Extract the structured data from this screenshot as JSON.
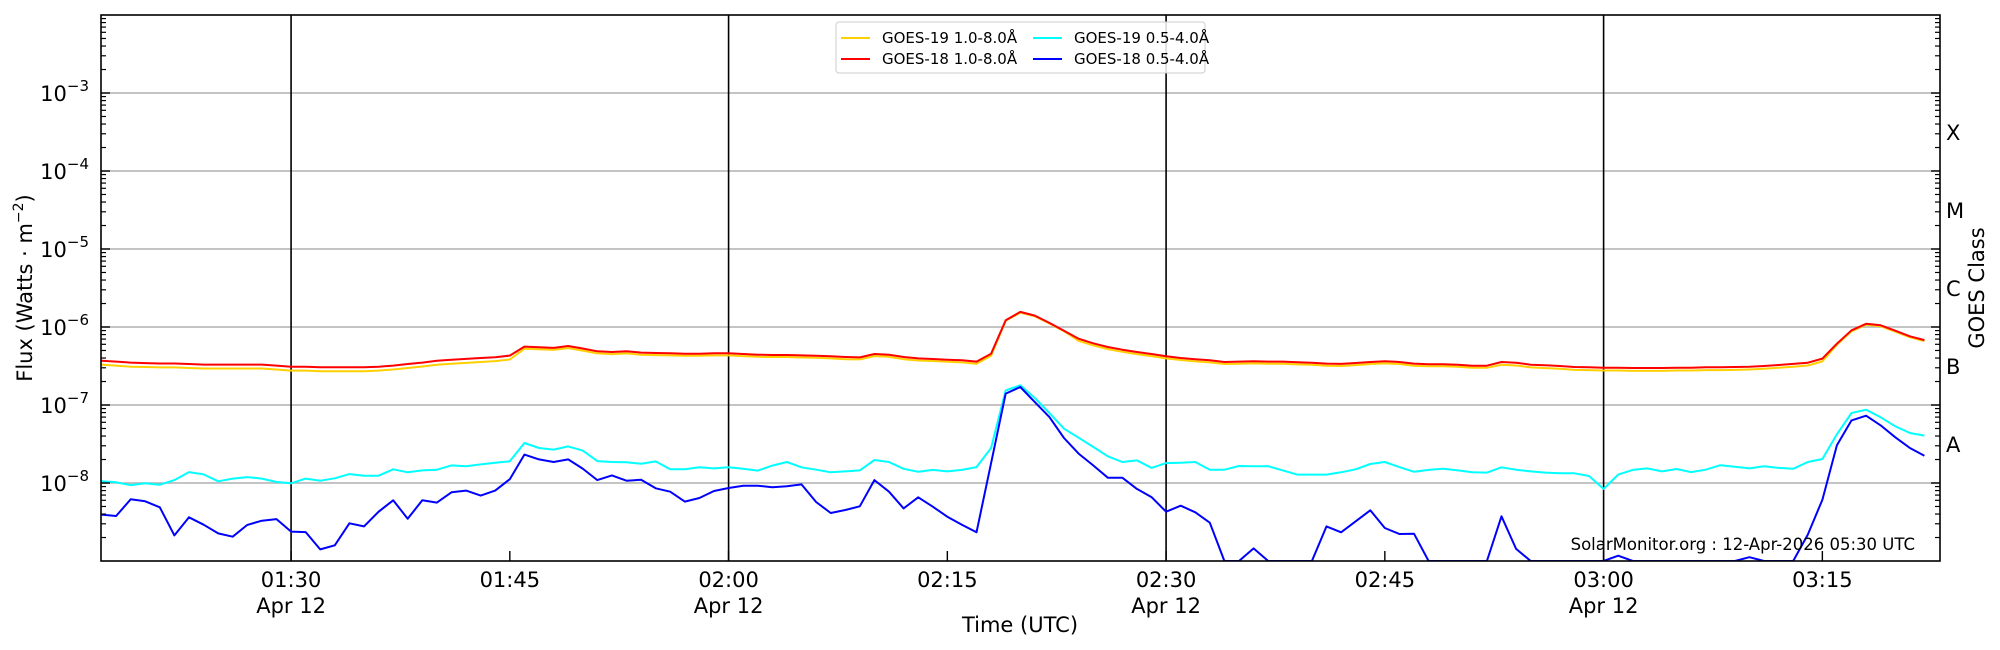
{
  "chart_data": {
    "type": "line",
    "title": "",
    "xlabel": "Time (UTC)",
    "ylabel": {
      "prefix": "Flux (Watts · m",
      "sup": "−2",
      "suffix": ")"
    },
    "y2label": "GOES Class",
    "yscale": "log",
    "ylim": [
      1e-09,
      0.01
    ],
    "xlim": [
      "01:16:58",
      "03:23:04"
    ],
    "x_start": "01:17",
    "x_step_minutes": 1,
    "grid": "horizontal major (decades) + vertical lines at day-labelled ticks",
    "y_ticks": [
      {
        "value": 0.001,
        "base": "10",
        "exp": "−3"
      },
      {
        "value": 0.0001,
        "base": "10",
        "exp": "−4"
      },
      {
        "value": 1e-05,
        "base": "10",
        "exp": "−5"
      },
      {
        "value": 1e-06,
        "base": "10",
        "exp": "−6"
      },
      {
        "value": 1e-07,
        "base": "10",
        "exp": "−7"
      },
      {
        "value": 1e-08,
        "base": "10",
        "exp": "−8"
      }
    ],
    "x_ticks": [
      {
        "time": "01:30",
        "label": "01:30",
        "sub": "Apr 12",
        "vline": true
      },
      {
        "time": "01:45",
        "label": "01:45",
        "sub": "",
        "vline": false
      },
      {
        "time": "02:00",
        "label": "02:00",
        "sub": "Apr 12",
        "vline": true
      },
      {
        "time": "02:15",
        "label": "02:15",
        "sub": "",
        "vline": false
      },
      {
        "time": "02:30",
        "label": "02:30",
        "sub": "Apr 12",
        "vline": true
      },
      {
        "time": "02:45",
        "label": "02:45",
        "sub": "",
        "vline": false
      },
      {
        "time": "03:00",
        "label": "03:00",
        "sub": "Apr 12",
        "vline": true
      },
      {
        "time": "03:15",
        "label": "03:15",
        "sub": "",
        "vline": false
      }
    ],
    "goes_classes": [
      {
        "label": "X",
        "log_center": -3.5
      },
      {
        "label": "M",
        "log_center": -4.5
      },
      {
        "label": "C",
        "log_center": -5.5
      },
      {
        "label": "B",
        "log_center": -6.5
      },
      {
        "label": "A",
        "log_center": -7.5
      }
    ],
    "legend_position": "top-center",
    "annotation": "SolarMonitor.org : 12-Apr-2026 05:30 UTC",
    "series": [
      {
        "name": "GOES-19 1.0-8.0Å",
        "color": "#ffd000",
        "scale": 1e-07,
        "values": [
          3.3,
          3.2,
          3.1,
          3.07,
          3.03,
          3.03,
          2.98,
          2.94,
          2.94,
          2.94,
          2.94,
          2.94,
          2.85,
          2.76,
          2.76,
          2.71,
          2.71,
          2.71,
          2.71,
          2.76,
          2.85,
          2.98,
          3.12,
          3.29,
          3.38,
          3.47,
          3.56,
          3.65,
          3.83,
          5.26,
          5.17,
          5.08,
          5.36,
          4.98,
          4.59,
          4.49,
          4.59,
          4.41,
          4.36,
          4.32,
          4.28,
          4.28,
          4.32,
          4.32,
          4.24,
          4.15,
          4.12,
          4.12,
          4.07,
          4.03,
          3.96,
          3.87,
          3.84,
          4.24,
          4.15,
          3.87,
          3.72,
          3.66,
          3.58,
          3.52,
          3.38,
          4.28,
          12.0,
          15.3,
          13.7,
          11.1,
          8.8,
          6.66,
          5.81,
          5.21,
          4.81,
          4.49,
          4.24,
          3.96,
          3.77,
          3.62,
          3.52,
          3.35,
          3.38,
          3.41,
          3.38,
          3.38,
          3.32,
          3.28,
          3.19,
          3.16,
          3.25,
          3.35,
          3.41,
          3.35,
          3.19,
          3.13,
          3.13,
          3.09,
          3.0,
          3.0,
          3.28,
          3.21,
          3.03,
          2.97,
          2.91,
          2.82,
          2.8,
          2.77,
          2.77,
          2.74,
          2.74,
          2.74,
          2.77,
          2.77,
          2.8,
          2.8,
          2.82,
          2.85,
          2.91,
          3.0,
          3.09,
          3.21,
          3.62,
          5.93,
          8.79,
          10.7,
          10.2,
          8.7,
          7.37,
          6.6
        ]
      },
      {
        "name": "GOES-18 1.0-8.0Å",
        "color": "#ff0000",
        "scale": 1e-07,
        "values": [
          3.7,
          3.6,
          3.5,
          3.45,
          3.4,
          3.4,
          3.35,
          3.3,
          3.3,
          3.3,
          3.3,
          3.3,
          3.2,
          3.1,
          3.1,
          3.05,
          3.05,
          3.05,
          3.05,
          3.1,
          3.2,
          3.35,
          3.5,
          3.7,
          3.8,
          3.9,
          4.0,
          4.1,
          4.3,
          5.6,
          5.5,
          5.4,
          5.7,
          5.3,
          4.88,
          4.78,
          4.88,
          4.69,
          4.64,
          4.6,
          4.55,
          4.55,
          4.6,
          4.6,
          4.51,
          4.42,
          4.38,
          4.38,
          4.33,
          4.29,
          4.21,
          4.12,
          4.08,
          4.51,
          4.42,
          4.12,
          3.96,
          3.89,
          3.81,
          3.74,
          3.6,
          4.55,
          12.2,
          15.6,
          14.0,
          11.3,
          8.97,
          7.08,
          6.18,
          5.54,
          5.12,
          4.78,
          4.51,
          4.21,
          4.01,
          3.85,
          3.74,
          3.56,
          3.6,
          3.63,
          3.6,
          3.6,
          3.53,
          3.49,
          3.39,
          3.36,
          3.46,
          3.56,
          3.63,
          3.56,
          3.39,
          3.33,
          3.33,
          3.29,
          3.19,
          3.19,
          3.56,
          3.49,
          3.29,
          3.23,
          3.16,
          3.07,
          3.04,
          3.01,
          3.01,
          2.98,
          2.98,
          2.98,
          3.01,
          3.01,
          3.04,
          3.04,
          3.07,
          3.1,
          3.16,
          3.26,
          3.36,
          3.49,
          3.93,
          6.11,
          9.06,
          11.0,
          10.5,
          8.97,
          7.6,
          6.8
        ]
      },
      {
        "name": "GOES-19 0.5-4.0Å",
        "color": "#00ffff",
        "scale": 1e-08,
        "values": [
          1.05,
          1.02,
          0.94,
          0.99,
          0.95,
          1.09,
          1.38,
          1.29,
          1.05,
          1.14,
          1.19,
          1.14,
          1.03,
          0.99,
          1.14,
          1.07,
          1.15,
          1.3,
          1.24,
          1.24,
          1.5,
          1.37,
          1.45,
          1.48,
          1.68,
          1.64,
          1.73,
          1.82,
          1.9,
          3.26,
          2.81,
          2.68,
          2.95,
          2.6,
          1.91,
          1.86,
          1.84,
          1.77,
          1.89,
          1.5,
          1.5,
          1.59,
          1.54,
          1.59,
          1.52,
          1.44,
          1.67,
          1.86,
          1.59,
          1.48,
          1.37,
          1.41,
          1.45,
          1.97,
          1.86,
          1.52,
          1.39,
          1.47,
          1.41,
          1.47,
          1.6,
          2.81,
          15.4,
          17.9,
          12.3,
          7.9,
          4.97,
          3.81,
          2.9,
          2.2,
          1.86,
          1.95,
          1.56,
          1.8,
          1.82,
          1.86,
          1.48,
          1.48,
          1.65,
          1.64,
          1.64,
          1.45,
          1.28,
          1.28,
          1.28,
          1.37,
          1.5,
          1.75,
          1.86,
          1.6,
          1.39,
          1.47,
          1.52,
          1.45,
          1.37,
          1.36,
          1.59,
          1.48,
          1.41,
          1.36,
          1.33,
          1.33,
          1.23,
          0.84,
          1.28,
          1.47,
          1.54,
          1.41,
          1.51,
          1.38,
          1.48,
          1.69,
          1.62,
          1.54,
          1.64,
          1.56,
          1.52,
          1.86,
          2.03,
          4.21,
          7.9,
          8.71,
          6.95,
          5.33,
          4.38,
          4.05
        ]
      },
      {
        "name": "GOES-18 0.5-4.0Å",
        "color": "#0000ff",
        "scale": 1e-09,
        "values": [
          3.93,
          3.78,
          6.18,
          5.82,
          4.88,
          2.13,
          3.63,
          2.92,
          2.26,
          2.05,
          2.9,
          3.29,
          3.45,
          2.38,
          2.35,
          1.41,
          1.59,
          3.04,
          2.78,
          4.29,
          6.0,
          3.49,
          6.0,
          5.6,
          7.6,
          7.98,
          6.89,
          7.98,
          11.2,
          23.1,
          20.1,
          18.6,
          20.1,
          15.3,
          10.9,
          12.5,
          10.7,
          11.0,
          8.55,
          7.74,
          5.77,
          6.42,
          7.89,
          8.63,
          9.24,
          9.24,
          8.8,
          9.06,
          9.6,
          5.7,
          4.12,
          4.51,
          5.02,
          10.9,
          7.74,
          4.73,
          6.55,
          4.97,
          3.7,
          2.92,
          2.33,
          18,
          140,
          170,
          109,
          70,
          37.8,
          23.8,
          16.8,
          11.7,
          11.7,
          8.4,
          6.6,
          4.29,
          5.12,
          4.21,
          3.1,
          0.8,
          0.8,
          1.45,
          0.8,
          0.8,
          0.8,
          0.8,
          2.78,
          2.33,
          3.23,
          4.47,
          2.65,
          2.22,
          2.24,
          0.8,
          0.8,
          0.8,
          0.8,
          0.8,
          3.74,
          1.43,
          0.8,
          0.8,
          0.8,
          0.8,
          0.8,
          0.8,
          1.17,
          0.8,
          0.8,
          0.8,
          0.8,
          0.8,
          0.8,
          0.8,
          0.8,
          1.12,
          0.8,
          0.8,
          0.8,
          2.18,
          6.11,
          30.4,
          63.5,
          73,
          54.8,
          38.5,
          28.1,
          22.4
        ]
      }
    ]
  }
}
